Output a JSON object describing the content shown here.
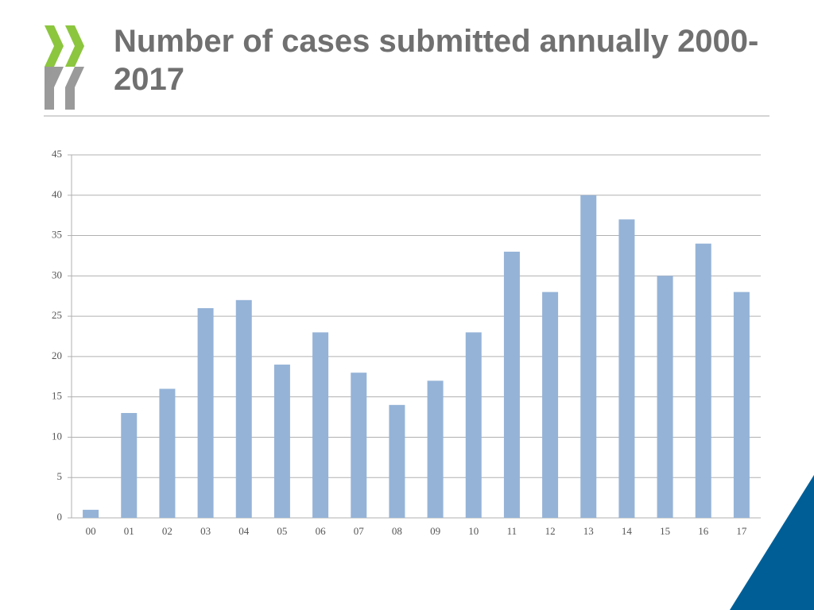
{
  "chart_data": {
    "type": "bar",
    "title": "Number of cases submitted annually 2000-2017",
    "categories": [
      "00",
      "01",
      "02",
      "03",
      "04",
      "05",
      "06",
      "07",
      "08",
      "09",
      "10",
      "11",
      "12",
      "13",
      "14",
      "15",
      "16",
      "17"
    ],
    "values": [
      1,
      13,
      16,
      26,
      27,
      19,
      23,
      18,
      14,
      17,
      23,
      33,
      28,
      40,
      37,
      30,
      34,
      28
    ],
    "color": "#95b3d7",
    "ylim": [
      0,
      45
    ],
    "yticks": [
      0,
      5,
      10,
      15,
      20,
      25,
      30,
      35,
      40,
      45
    ],
    "grid": true
  }
}
